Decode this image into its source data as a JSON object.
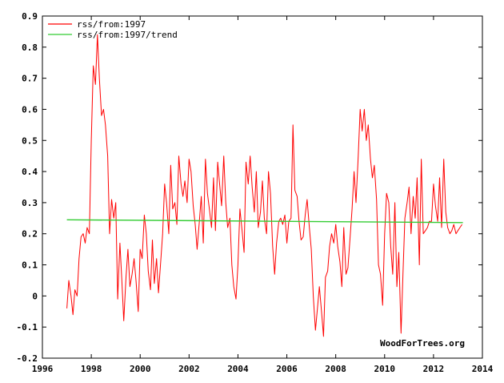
{
  "chart_data": {
    "type": "line",
    "title": "",
    "xlabel": "",
    "ylabel": "",
    "xlim": [
      1996,
      2014
    ],
    "ylim": [
      -0.2,
      0.9
    ],
    "x_ticks": [
      1996,
      1998,
      2000,
      2002,
      2004,
      2006,
      2008,
      2010,
      2012,
      2014
    ],
    "y_ticks": [
      -0.2,
      -0.1,
      0,
      0.1,
      0.2,
      0.3,
      0.4,
      0.5,
      0.6,
      0.7,
      0.8,
      0.9
    ],
    "x_tick_labels": [
      "1996",
      "1998",
      "2000",
      "2002",
      "2004",
      "2006",
      "2008",
      "2010",
      "2012",
      "2014"
    ],
    "y_tick_labels": [
      "-0.2",
      "-0.1",
      "0",
      "0.1",
      "0.2",
      "0.3",
      "0.4",
      "0.5",
      "0.6",
      "0.7",
      "0.8",
      "0.9"
    ],
    "grid": false,
    "legend_position": "top-left",
    "credit": "WoodForTrees.org",
    "series": [
      {
        "name": "rss/from:1997",
        "color": "#ff0000",
        "x": [
          1997.0,
          1997.08,
          1997.17,
          1997.25,
          1997.33,
          1997.42,
          1997.5,
          1997.58,
          1997.67,
          1997.75,
          1997.83,
          1997.92,
          1998.0,
          1998.08,
          1998.17,
          1998.25,
          1998.33,
          1998.42,
          1998.5,
          1998.58,
          1998.67,
          1998.75,
          1998.83,
          1998.92,
          1999.0,
          1999.08,
          1999.17,
          1999.25,
          1999.33,
          1999.42,
          1999.5,
          1999.58,
          1999.67,
          1999.75,
          1999.83,
          1999.92,
          2000.0,
          2000.08,
          2000.17,
          2000.25,
          2000.33,
          2000.42,
          2000.5,
          2000.58,
          2000.67,
          2000.75,
          2000.83,
          2000.92,
          2001.0,
          2001.08,
          2001.17,
          2001.25,
          2001.33,
          2001.42,
          2001.5,
          2001.58,
          2001.67,
          2001.75,
          2001.83,
          2001.92,
          2002.0,
          2002.08,
          2002.17,
          2002.25,
          2002.33,
          2002.42,
          2002.5,
          2002.58,
          2002.67,
          2002.75,
          2002.83,
          2002.92,
          2003.0,
          2003.08,
          2003.17,
          2003.25,
          2003.33,
          2003.42,
          2003.5,
          2003.58,
          2003.67,
          2003.75,
          2003.83,
          2003.92,
          2004.0,
          2004.08,
          2004.17,
          2004.25,
          2004.33,
          2004.42,
          2004.5,
          2004.58,
          2004.67,
          2004.75,
          2004.83,
          2004.92,
          2005.0,
          2005.08,
          2005.17,
          2005.25,
          2005.33,
          2005.42,
          2005.5,
          2005.58,
          2005.67,
          2005.75,
          2005.83,
          2005.92,
          2006.0,
          2006.08,
          2006.17,
          2006.25,
          2006.33,
          2006.42,
          2006.5,
          2006.58,
          2006.67,
          2006.75,
          2006.83,
          2006.92,
          2007.0,
          2007.08,
          2007.17,
          2007.25,
          2007.33,
          2007.42,
          2007.5,
          2007.58,
          2007.67,
          2007.75,
          2007.83,
          2007.92,
          2008.0,
          2008.08,
          2008.17,
          2008.25,
          2008.33,
          2008.42,
          2008.5,
          2008.58,
          2008.67,
          2008.75,
          2008.83,
          2008.92,
          2009.0,
          2009.08,
          2009.17,
          2009.25,
          2009.33,
          2009.42,
          2009.5,
          2009.58,
          2009.67,
          2009.75,
          2009.83,
          2009.92,
          2010.0,
          2010.08,
          2010.17,
          2010.25,
          2010.33,
          2010.42,
          2010.5,
          2010.58,
          2010.67,
          2010.75,
          2010.83,
          2010.92,
          2011.0,
          2011.08,
          2011.17,
          2011.25,
          2011.33,
          2011.42,
          2011.5,
          2011.58,
          2011.67,
          2011.75,
          2011.83,
          2011.92,
          2012.0,
          2012.08,
          2012.17,
          2012.25,
          2012.33,
          2012.42,
          2012.5,
          2012.58,
          2012.67,
          2012.75,
          2012.83,
          2012.92,
          2013.0,
          2013.08,
          2013.17
        ],
        "y": [
          -0.04,
          0.05,
          0.0,
          -0.06,
          0.02,
          0.0,
          0.12,
          0.19,
          0.2,
          0.17,
          0.22,
          0.2,
          0.5,
          0.74,
          0.68,
          0.84,
          0.7,
          0.58,
          0.6,
          0.55,
          0.45,
          0.2,
          0.31,
          0.25,
          0.3,
          -0.01,
          0.17,
          0.05,
          -0.08,
          0.06,
          0.15,
          0.03,
          0.07,
          0.12,
          0.05,
          -0.05,
          0.15,
          0.12,
          0.26,
          0.2,
          0.08,
          0.02,
          0.18,
          0.04,
          0.12,
          0.01,
          0.1,
          0.2,
          0.36,
          0.3,
          0.2,
          0.42,
          0.28,
          0.3,
          0.23,
          0.45,
          0.36,
          0.32,
          0.37,
          0.3,
          0.44,
          0.4,
          0.29,
          0.23,
          0.15,
          0.24,
          0.32,
          0.17,
          0.44,
          0.33,
          0.28,
          0.22,
          0.38,
          0.21,
          0.43,
          0.36,
          0.29,
          0.45,
          0.3,
          0.22,
          0.25,
          0.1,
          0.03,
          -0.01,
          0.1,
          0.28,
          0.21,
          0.14,
          0.43,
          0.36,
          0.45,
          0.35,
          0.27,
          0.4,
          0.22,
          0.27,
          0.37,
          0.25,
          0.2,
          0.4,
          0.33,
          0.16,
          0.07,
          0.17,
          0.24,
          0.25,
          0.23,
          0.26,
          0.17,
          0.24,
          0.25,
          0.55,
          0.34,
          0.32,
          0.24,
          0.18,
          0.19,
          0.26,
          0.31,
          0.22,
          0.15,
          0.0,
          -0.11,
          -0.04,
          0.03,
          -0.05,
          -0.13,
          0.06,
          0.08,
          0.16,
          0.2,
          0.17,
          0.23,
          0.16,
          0.11,
          0.03,
          0.22,
          0.07,
          0.09,
          0.18,
          0.28,
          0.4,
          0.3,
          0.45,
          0.6,
          0.53,
          0.6,
          0.5,
          0.55,
          0.44,
          0.38,
          0.42,
          0.31,
          0.1,
          0.07,
          -0.03,
          0.2,
          0.33,
          0.3,
          0.16,
          0.07,
          0.3,
          0.03,
          0.14,
          -0.12,
          0.07,
          0.25,
          0.3,
          0.35,
          0.2,
          0.32,
          0.25,
          0.38,
          0.1,
          0.44,
          0.2,
          0.21,
          0.22,
          0.24,
          0.24,
          0.36,
          0.29,
          0.24,
          0.38,
          0.22,
          0.44,
          0.27,
          0.22,
          0.2,
          0.21,
          0.23,
          0.2,
          0.21,
          0.22,
          0.23
        ]
      },
      {
        "name": "rss/from:1997/trend",
        "color": "#33cc33",
        "x": [
          1997.0,
          2013.2
        ],
        "y": [
          0.245,
          0.236
        ]
      }
    ]
  }
}
